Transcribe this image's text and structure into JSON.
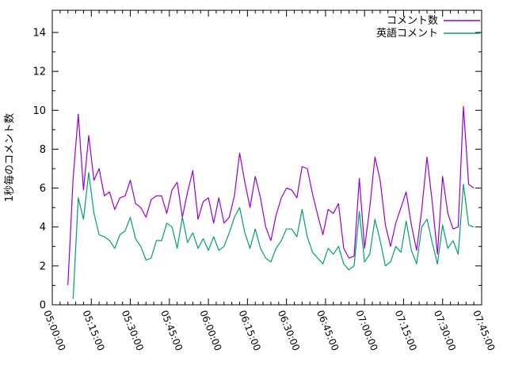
{
  "chart_data": {
    "type": "line",
    "title": "",
    "xlabel": "",
    "ylabel": "1秒毎のコメント数",
    "grid": false,
    "legend_position": "top-right",
    "background_color": "#ffffff",
    "axis_color": "#000000",
    "ylim": [
      0,
      15.14
    ],
    "y_ticks": [
      0,
      2,
      4,
      6,
      8,
      10,
      12,
      14
    ],
    "y_minor_tick_step": 1,
    "xlim_minutes": [
      0,
      165
    ],
    "x_tick_minutes": [
      0,
      15,
      30,
      45,
      60,
      75,
      90,
      105,
      120,
      135,
      150,
      165
    ],
    "x_tick_labels": [
      "05:00:00",
      "05:15:00",
      "05:30:00",
      "05:45:00",
      "06:00:00",
      "06:15:00",
      "06:30:00",
      "06:45:00",
      "07:00:00",
      "07:15:00",
      "07:30:00",
      "07:45:00"
    ],
    "x_minor_tick_step_minutes": 3,
    "x_minutes_after_0500": [
      6,
      8,
      10,
      12,
      14,
      16,
      18,
      20,
      22,
      24,
      26,
      28,
      30,
      32,
      34,
      36,
      38,
      40,
      42,
      44,
      46,
      48,
      50,
      52,
      54,
      56,
      58,
      60,
      62,
      64,
      66,
      68,
      70,
      72,
      74,
      76,
      78,
      80,
      82,
      84,
      86,
      88,
      90,
      92,
      94,
      96,
      98,
      100,
      102,
      104,
      106,
      108,
      110,
      112,
      114,
      116,
      118,
      120,
      122,
      124,
      126,
      128,
      130,
      132,
      134,
      136,
      138,
      140,
      142,
      144,
      146,
      148,
      150,
      152,
      154,
      156,
      158,
      160,
      162
    ],
    "series": [
      {
        "name": "コメント数",
        "color": "#9400D3",
        "values": [
          1.0,
          6.5,
          9.8,
          5.9,
          8.7,
          6.4,
          7.0,
          5.6,
          5.8,
          4.9,
          5.5,
          5.6,
          6.4,
          5.2,
          5.0,
          4.5,
          5.4,
          5.6,
          5.6,
          4.7,
          5.9,
          6.3,
          4.5,
          5.8,
          6.9,
          4.4,
          5.3,
          5.5,
          4.2,
          5.5,
          4.2,
          4.5,
          5.6,
          7.8,
          6.3,
          5.0,
          6.6,
          5.5,
          4.0,
          3.3,
          4.6,
          5.5,
          6.0,
          5.9,
          5.5,
          7.1,
          7.0,
          5.7,
          4.6,
          3.6,
          4.9,
          4.7,
          5.2,
          2.9,
          2.4,
          2.5,
          6.5,
          2.9,
          5.0,
          7.6,
          6.4,
          4.1,
          3.0,
          4.2,
          5.0,
          5.8,
          4.1,
          2.8,
          4.9,
          7.6,
          5.3,
          2.6,
          6.6,
          4.7,
          3.9,
          4.0,
          10.2,
          6.2,
          6.0
        ]
      },
      {
        "name": "英語コメント",
        "color": "#009E73",
        "values": [
          null,
          0.3,
          5.5,
          4.4,
          6.8,
          4.7,
          3.6,
          3.5,
          3.3,
          2.9,
          3.6,
          3.8,
          4.5,
          3.4,
          3.0,
          2.3,
          2.4,
          3.3,
          3.3,
          4.2,
          4.0,
          2.9,
          4.5,
          3.2,
          3.7,
          2.9,
          3.4,
          2.8,
          3.5,
          2.8,
          3.0,
          3.7,
          4.5,
          5.0,
          3.7,
          2.9,
          3.9,
          2.9,
          2.4,
          2.2,
          2.9,
          3.3,
          3.9,
          3.9,
          3.5,
          4.9,
          3.5,
          2.7,
          2.4,
          2.1,
          2.9,
          2.6,
          3.0,
          2.1,
          1.8,
          2.0,
          4.8,
          2.2,
          2.6,
          4.4,
          3.3,
          2.0,
          2.2,
          3.0,
          2.7,
          4.3,
          2.8,
          2.1,
          4.0,
          4.4,
          3.2,
          2.1,
          4.1,
          2.9,
          3.3,
          2.6,
          6.2,
          4.1,
          4.0
        ]
      }
    ]
  }
}
